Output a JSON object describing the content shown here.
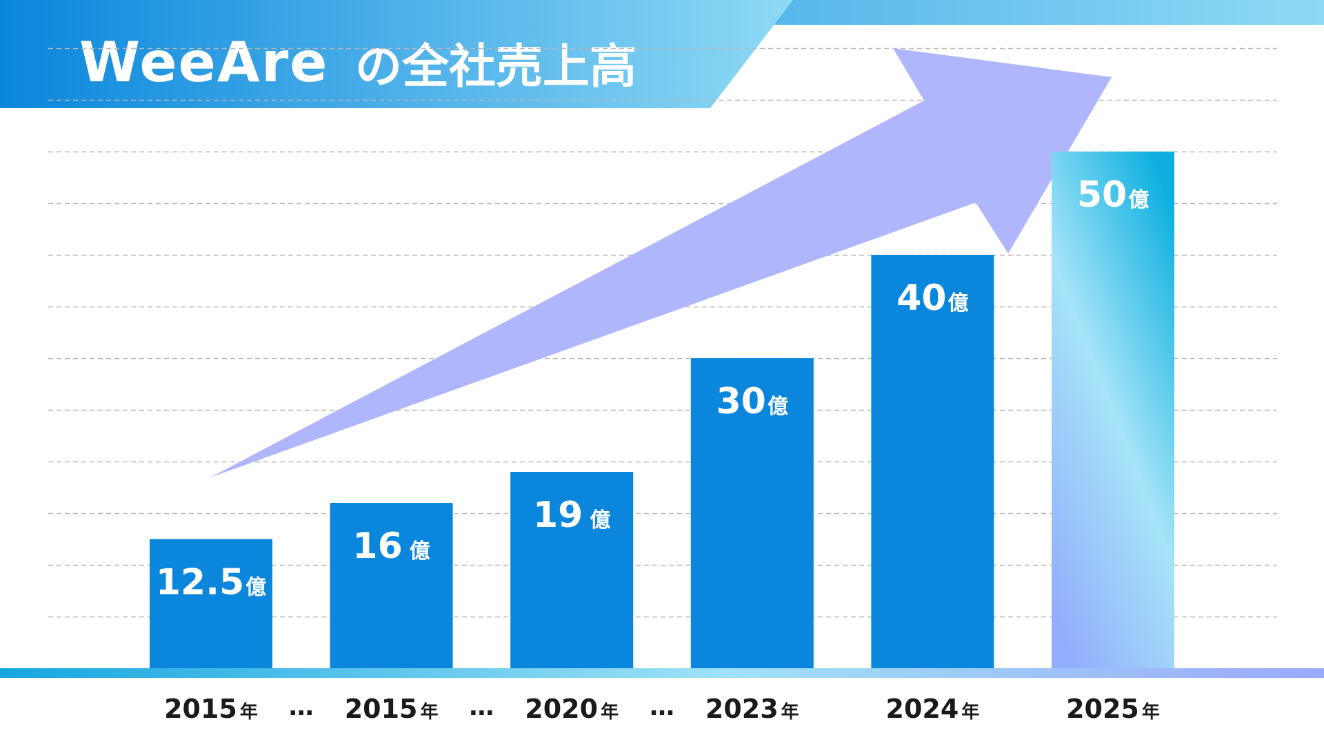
{
  "header": {
    "logo": "WeeAre",
    "title": "の全社売上高"
  },
  "colors": {
    "bar": "#0a86dc",
    "arrow": "#b0b6fc",
    "header_start": "#0a86dc",
    "header_end": "#8ed9f5",
    "highlight_top": "#0fb0e0",
    "highlight_mid": "#a5e4f8",
    "highlight_bottom": "#93aefc",
    "grid": "#b8b8b8",
    "year_text": "#1a1a1a"
  },
  "chart_data": {
    "type": "bar",
    "title": "WeeAreの全社売上高",
    "xlabel": "",
    "ylabel": "",
    "unit": "億",
    "ylim": [
      0,
      60
    ],
    "grid": true,
    "categories": [
      "2015年",
      "2015年",
      "2020年",
      "2023年",
      "2024年",
      "2025年"
    ],
    "years": [
      "2015",
      "2015",
      "2020",
      "2023",
      "2024",
      "2025"
    ],
    "year_unit": "年",
    "value_labels": [
      "12.5",
      "16",
      "19",
      "30",
      "40",
      "50"
    ],
    "values": [
      12.5,
      16,
      19,
      30,
      40,
      50
    ],
    "highlighted_index": 5,
    "gap_markers": [
      "…",
      "…",
      "…"
    ],
    "gap_marker_after_indices": [
      0,
      1,
      2
    ],
    "annotations": [
      "upward growth arrow from 2015 to 2025"
    ]
  }
}
